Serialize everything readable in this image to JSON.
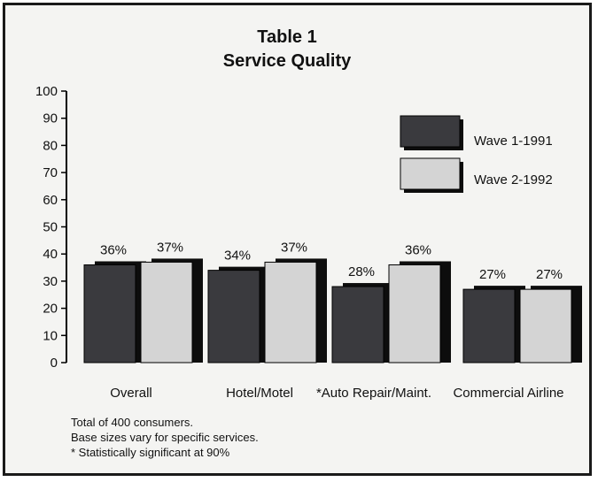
{
  "chart_data": {
    "type": "bar",
    "title": "Table 1",
    "subtitle": "Service Quality",
    "categories": [
      "Overall",
      "Hotel/Motel",
      "*Auto Repair/Maint.",
      "Commercial Airline"
    ],
    "series": [
      {
        "name": "Wave 1-1991",
        "values": [
          36,
          34,
          28,
          27
        ],
        "labels": [
          "36%",
          "34%",
          "28%",
          "27%"
        ],
        "color": "#3a3a3e"
      },
      {
        "name": "Wave 2-1992",
        "values": [
          37,
          37,
          36,
          27
        ],
        "labels": [
          "37%",
          "37%",
          "36%",
          "27%"
        ],
        "color": "#d4d4d4"
      }
    ],
    "shadow_color": "#0d0d0d",
    "ylim": [
      0,
      100
    ],
    "yticks": [
      "0",
      "10",
      "20",
      "30",
      "40",
      "50",
      "60",
      "70",
      "80",
      "90",
      "100"
    ],
    "xlabel": "",
    "ylabel": "",
    "grid": false,
    "legend_position": "upper-right",
    "footnotes": [
      "Total of 400 consumers.",
      "Base sizes vary for specific services.",
      "* Statistically significant at 90%"
    ]
  }
}
